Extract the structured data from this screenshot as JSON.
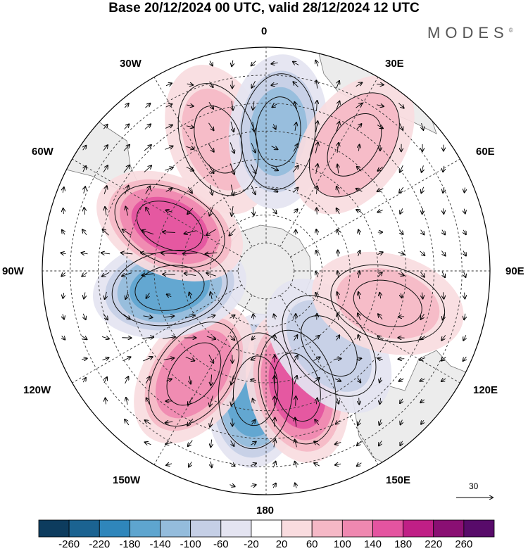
{
  "title": "Base 20/12/2024 00 UTC, valid 28/12/2024 12 UTC",
  "brand": "MODES",
  "brand_mark": "©",
  "lon_labels": {
    "l0": "0",
    "l30e": "30E",
    "l60e": "60E",
    "l90e": "90E",
    "l120e": "120E",
    "l150e": "150E",
    "l180": "180",
    "l150w": "150W",
    "l120w": "120W",
    "l90w": "90W",
    "l60w": "60W",
    "l30w": "30W"
  },
  "vector_reference": "30",
  "colorbar": {
    "ticks": [
      "-260",
      "-220",
      "-180",
      "-140",
      "-100",
      "-60",
      "-20",
      "20",
      "60",
      "100",
      "140",
      "180",
      "220",
      "260"
    ],
    "colors": [
      "#0d3c5e",
      "#1b6391",
      "#2f86bb",
      "#5ea5cf",
      "#94bcdc",
      "#c5cfe6",
      "#e4e4f1",
      "#ffffff",
      "#f9dcdf",
      "#f5b8c6",
      "#ef88b0",
      "#e454a0",
      "#c01f86",
      "#8a0f73",
      "#580b6a"
    ]
  },
  "anomalies": [
    {
      "lon": -175,
      "lat": -47,
      "value": -170
    },
    {
      "lon": 165,
      "lat": -47,
      "value": 150
    },
    {
      "lon": -145,
      "lat": -45,
      "value": 120
    },
    {
      "lon": -100,
      "lat": -55,
      "value": -140
    },
    {
      "lon": -65,
      "lat": -52,
      "value": 140
    },
    {
      "lon": -20,
      "lat": -40,
      "value": 60
    },
    {
      "lon": 5,
      "lat": -40,
      "value": -100
    },
    {
      "lon": 35,
      "lat": -35,
      "value": 80
    },
    {
      "lon": 140,
      "lat": -55,
      "value": -60
    },
    {
      "lon": 105,
      "lat": -45,
      "value": 60
    }
  ]
}
